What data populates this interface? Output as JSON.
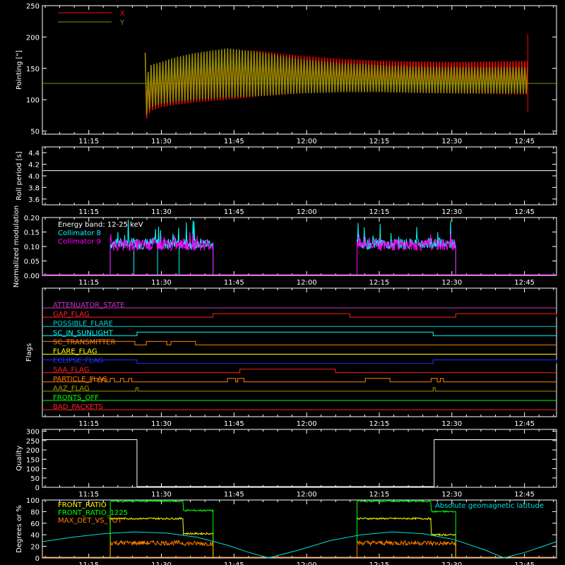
{
  "time_ticks": [
    "11:15",
    "11:30",
    "11:45",
    "12:00",
    "12:15",
    "12:30",
    "12:45"
  ],
  "chart_data": [
    {
      "type": "line",
      "ylabel": "Pointing [\"]",
      "ylim": [
        45,
        250
      ],
      "yticks": [
        "50",
        "100",
        "150",
        "200",
        "250"
      ],
      "xlim_min": [
        0,
        100
      ],
      "legend": [
        "X",
        "Y"
      ],
      "series": [
        {
          "name": "X",
          "color": "#ff0000",
          "x": [
            20,
            20.4,
            21,
            23,
            26,
            30,
            36,
            42,
            50,
            58,
            66,
            72,
            80,
            88,
            94.4
          ],
          "upper": [
            175,
            125,
            150,
            158,
            165,
            172,
            180,
            178,
            170,
            165,
            162,
            161,
            160,
            161,
            162
          ],
          "lower": [
            75,
            68,
            82,
            88,
            92,
            96,
            100,
            105,
            110,
            112,
            112,
            111,
            110,
            109,
            108
          ]
        },
        {
          "name": "Y",
          "color": "#8c8c00",
          "x": [
            20,
            20.4,
            21,
            23,
            26,
            30,
            36,
            42,
            50,
            58,
            66,
            72,
            80,
            88,
            94.4
          ],
          "upper": [
            175,
            140,
            155,
            160,
            168,
            175,
            182,
            176,
            165,
            158,
            155,
            153,
            152,
            152,
            152
          ],
          "lower": [
            80,
            75,
            88,
            93,
            97,
            100,
            104,
            106,
            110,
            112,
            112,
            111,
            110,
            110,
            110
          ]
        }
      ],
      "baseline": 126
    },
    {
      "type": "line",
      "ylabel": "Roll period [s]",
      "ylim": [
        3.5,
        4.5
      ],
      "yticks": [
        "3.6",
        "3.8",
        "4.0",
        "4.2",
        "4.4"
      ],
      "series": [
        {
          "name": "",
          "value": 4.09
        }
      ]
    },
    {
      "type": "line",
      "ylabel": "Normalized modulation",
      "ylim": [
        0,
        0.2
      ],
      "yticks": [
        "0.00",
        "0.05",
        "0.10",
        "0.15",
        "0.20"
      ],
      "annotations": [
        "Energy band: 12-25 keV"
      ],
      "legend": [
        "Collimator 8",
        "Collimator 9"
      ],
      "series": [
        {
          "name": "Collimator 8",
          "color": "#00ffff",
          "segments": [
            [
              13.2,
              33.2
            ],
            [
              61.2,
              80.4
            ]
          ],
          "mean": 0.11,
          "peak": 0.2
        },
        {
          "name": "Collimator 9",
          "color": "#ff00ff",
          "segments": [
            [
              13.2,
              33.2
            ],
            [
              61.2,
              80.4
            ]
          ],
          "mean": 0.105,
          "peak": 0.15
        }
      ]
    },
    {
      "type": "line",
      "ylabel": "Flags",
      "flags": [
        {
          "name": "ATTENUATOR_STATE",
          "color": "#cc33cc",
          "high": []
        },
        {
          "name": "GAP_FLAG",
          "color": "#ff2020",
          "high": [
            [
              33.2,
              59.8
            ],
            [
              80.4,
              100
            ]
          ]
        },
        {
          "name": "POSSIBLE_FLARE",
          "color": "#00d0d0",
          "high": []
        },
        {
          "name": "SC_IN_SUNLIGHT",
          "color": "#00ffff",
          "high": [
            [
              18.4,
              76.0
            ]
          ]
        },
        {
          "name": "SC_TRANSMITTER",
          "color": "#ff8000",
          "high": [
            [
              0,
              18.0
            ],
            [
              20.2,
              24.2
            ],
            [
              25.0,
              29.8
            ]
          ]
        },
        {
          "name": "FLARE_FLAG",
          "color": "#ffff00",
          "high": []
        },
        {
          "name": "ECLIPSE_FLAG",
          "color": "#2030ff",
          "high": [
            [
              0,
              18.4
            ],
            [
              76.0,
              100
            ]
          ]
        },
        {
          "name": "SAA_FLAG",
          "color": "#ff2020",
          "high": [
            [
              38.4,
              57.0
            ]
          ]
        },
        {
          "name": "PARTICLE_FLAG",
          "color": "#ff8000",
          "high": [
            [
              9.6,
              10.8
            ],
            [
              11.6,
              12.2
            ],
            [
              13.2,
              14.0
            ],
            [
              15.2,
              15.8
            ],
            [
              16.8,
              17.4
            ],
            [
              36.0,
              37.6
            ],
            [
              38.0,
              39.2
            ],
            [
              62.8,
              67.6
            ],
            [
              75.6,
              76.8
            ],
            [
              77.4,
              78.0
            ]
          ]
        },
        {
          "name": "AAZ_FLAG",
          "color": "#999900",
          "high": [
            [
              18.2,
              18.6
            ],
            [
              76.0,
              76.4
            ]
          ]
        },
        {
          "name": "FRONTS_OFF",
          "color": "#00ff00",
          "high": []
        },
        {
          "name": "BAD_PACKETS",
          "color": "#ff2020",
          "high": []
        }
      ]
    },
    {
      "type": "line",
      "ylabel": "Quality",
      "ylim": [
        0,
        310
      ],
      "yticks": [
        "0",
        "50",
        "100",
        "150",
        "200",
        "250",
        "300"
      ],
      "series": [
        {
          "name": "",
          "value": 255,
          "high": [
            [
              0,
              18.4
            ],
            [
              76.2,
              100
            ]
          ]
        }
      ]
    },
    {
      "type": "line",
      "ylabel": "Degrees or %",
      "ylim": [
        0,
        100
      ],
      "yticks": [
        "0",
        "20",
        "40",
        "60",
        "80",
        "100"
      ],
      "legend": [
        "FRONT_RATIO",
        "FRONT_RATIO_1225",
        "MAX_DET_VS_TOT"
      ],
      "annotations": [
        "Absolute geomagnetic latitude"
      ],
      "series": [
        {
          "name": "FRONT_RATIO",
          "color": "#ffff00",
          "segments": [
            [
              13.2,
              33.2
            ],
            [
              61.2,
              80.4
            ]
          ],
          "levels": [
            [
              13.2,
              68
            ],
            [
              27.4,
              42
            ],
            [
              61.2,
              68
            ],
            [
              75.6,
              40
            ]
          ]
        },
        {
          "name": "FRONT_RATIO_1225",
          "color": "#00ff00",
          "segments": [
            [
              13.2,
              33.2
            ],
            [
              61.2,
              80.4
            ]
          ],
          "levels": [
            [
              13.2,
              98
            ],
            [
              27.4,
              82
            ],
            [
              61.2,
              98
            ],
            [
              75.6,
              80
            ]
          ]
        },
        {
          "name": "MAX_DET_VS_TOT",
          "color": "#ff8000",
          "segments": [
            [
              13.2,
              33.2
            ],
            [
              61.2,
              80.4
            ]
          ],
          "levels": [
            [
              13.2,
              26
            ],
            [
              27.4,
              25
            ],
            [
              61.2,
              26
            ],
            [
              75.6,
              25
            ]
          ]
        },
        {
          "name": "Absolute geomagnetic latitude",
          "color": "#00e0e0",
          "x": [
            0,
            6,
            12,
            18,
            24,
            30,
            36,
            40,
            44,
            50,
            56,
            62,
            68,
            74,
            80,
            86,
            89.8,
            94,
            100
          ],
          "y": [
            28,
            36,
            42,
            45,
            43,
            36,
            22,
            10,
            0,
            14,
            30,
            40,
            45,
            42,
            32,
            14,
            0,
            10,
            28
          ]
        }
      ]
    }
  ]
}
